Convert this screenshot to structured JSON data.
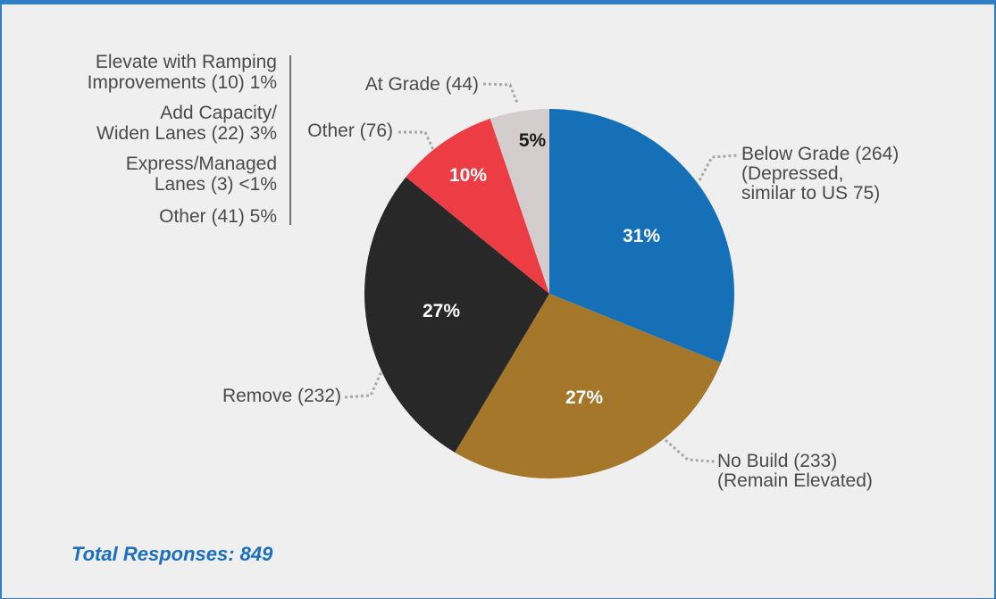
{
  "chart_data": {
    "type": "pie",
    "slices": [
      {
        "label_lines": [
          "Below Grade (264)",
          "(Depressed,",
          "similar to US 75)"
        ],
        "count": 264,
        "percent_label": "31%",
        "color": "#1670b8",
        "pct_color": "#ffffff"
      },
      {
        "label_lines": [
          "No Build (233)",
          "(Remain Elevated)"
        ],
        "count": 233,
        "percent_label": "27%",
        "color": "#a5772b",
        "pct_color": "#ffffff"
      },
      {
        "label_lines": [
          "Remove (232)"
        ],
        "count": 232,
        "percent_label": "27%",
        "color": "#282828",
        "pct_color": "#ffffff"
      },
      {
        "label_lines": [
          "Other (76)"
        ],
        "count": 76,
        "percent_label": "10%",
        "color": "#ec3c44",
        "pct_color": "#ffffff"
      },
      {
        "label_lines": [
          "At Grade (44)"
        ],
        "count": 44,
        "percent_label": "5%",
        "color": "#d3cdcd",
        "pct_color": "#1a1a1a"
      }
    ],
    "other_breakdown": [
      [
        "Elevate with Ramping",
        "Improvements (10) 1%"
      ],
      [
        "Add Capacity/",
        "Widen Lanes (22) 3%"
      ],
      [
        "Express/Managed",
        "Lanes (3) <1%"
      ],
      [
        "Other (41) 5%"
      ]
    ],
    "total_text": "Total Responses: 849",
    "total_color": "#1a6fbf"
  }
}
